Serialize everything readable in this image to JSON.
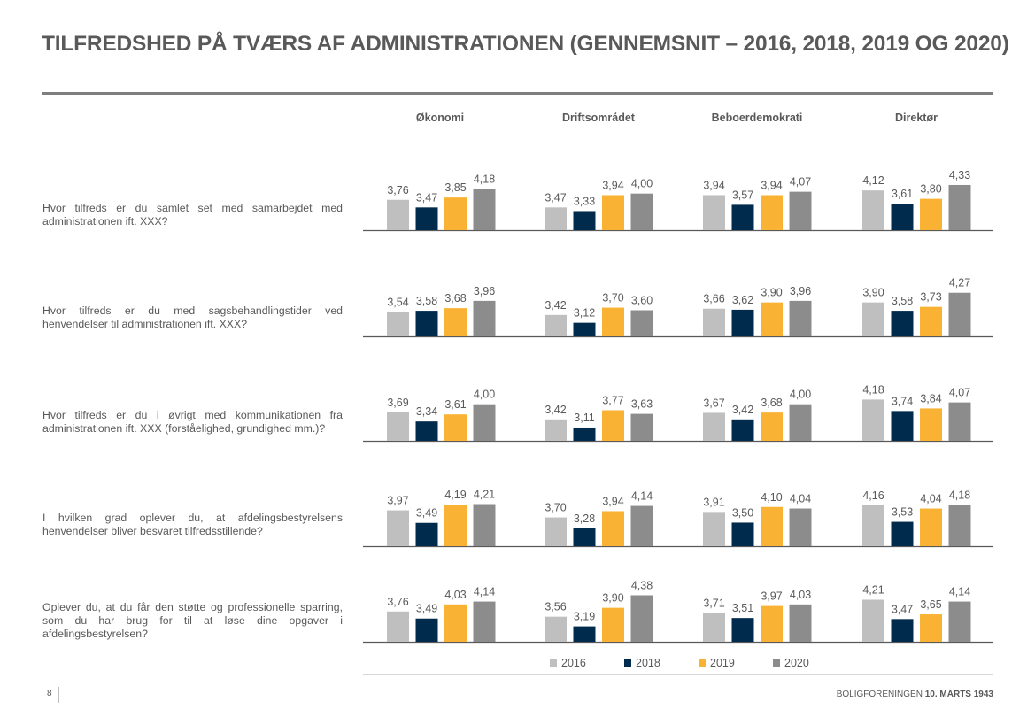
{
  "page": {
    "title": "TILFREDSHED PÅ TVÆRS AF ADMINISTRATIONEN (GENNEMSNIT – 2016, 2018, 2019 OG 2020)",
    "page_number": "8",
    "footer_prefix": "BOLIGFORENINGEN",
    "footer_bold": "10. MARTS 1943"
  },
  "colors": {
    "2016": "#bfbfbf",
    "2018": "#002b4d",
    "2019": "#f9b233",
    "2020": "#8c8c8c"
  },
  "chart_data": {
    "type": "bar",
    "title": "TILFREDSHED PÅ TVÆRS AF ADMINISTRATIONEN (GENNEMSNIT – 2016, 2018, 2019 OG 2020)",
    "columns": [
      "Økonomi",
      "Driftsområdet",
      "Beboerdemokrati",
      "Direktør"
    ],
    "series_names": [
      "2016",
      "2018",
      "2019",
      "2020"
    ],
    "legend_position": "bottom",
    "value_axis_min_approx": 2.6,
    "grid": false,
    "rows": [
      {
        "question": "Hvor tilfreds er du samlet set med samarbejdet med administrationen ift. XXX?",
        "values": [
          [
            3.76,
            3.47,
            3.85,
            4.18
          ],
          [
            3.47,
            3.33,
            3.94,
            4.0
          ],
          [
            3.94,
            3.57,
            3.94,
            4.07
          ],
          [
            4.12,
            3.61,
            3.8,
            4.33
          ]
        ],
        "labels": [
          [
            "3,76",
            "3,47",
            "3,85",
            "4,18"
          ],
          [
            "3,47",
            "3,33",
            "3,94",
            "4,00"
          ],
          [
            "3,94",
            "3,57",
            "3,94",
            "4,07"
          ],
          [
            "4,12",
            "3,61",
            "3,80",
            "4,33"
          ]
        ]
      },
      {
        "question": "Hvor tilfreds er du med sagsbehandlingstider ved henvendelser til administrationen ift. XXX?",
        "values": [
          [
            3.54,
            3.58,
            3.68,
            3.96
          ],
          [
            3.42,
            3.12,
            3.7,
            3.6
          ],
          [
            3.66,
            3.62,
            3.9,
            3.96
          ],
          [
            3.9,
            3.58,
            3.73,
            4.27
          ]
        ],
        "labels": [
          [
            "3,54",
            "3,58",
            "3,68",
            "3,96"
          ],
          [
            "3,42",
            "3,12",
            "3,70",
            "3,60"
          ],
          [
            "3,66",
            "3,62",
            "3,90",
            "3,96"
          ],
          [
            "3,90",
            "3,58",
            "3,73",
            "4,27"
          ]
        ]
      },
      {
        "question": "Hvor tilfreds er du i øvrigt med kommunikationen fra administrationen ift. XXX (forståelighed, grundighed mm.)?",
        "values": [
          [
            3.69,
            3.34,
            3.61,
            4.0
          ],
          [
            3.42,
            3.11,
            3.77,
            3.63
          ],
          [
            3.67,
            3.42,
            3.68,
            4.0
          ],
          [
            4.18,
            3.74,
            3.84,
            4.07
          ]
        ],
        "labels": [
          [
            "3,69",
            "3,34",
            "3,61",
            "4,00"
          ],
          [
            "3,42",
            "3,11",
            "3,77",
            "3,63"
          ],
          [
            "3,67",
            "3,42",
            "3,68",
            "4,00"
          ],
          [
            "4,18",
            "3,74",
            "3,84",
            "4,07"
          ]
        ]
      },
      {
        "question": "I hvilken grad oplever du, at afdelingsbestyrelsens henvendelser bliver besvaret tilfredsstillende?",
        "values": [
          [
            3.97,
            3.49,
            4.19,
            4.21
          ],
          [
            3.7,
            3.28,
            3.94,
            4.14
          ],
          [
            3.91,
            3.5,
            4.1,
            4.04
          ],
          [
            4.16,
            3.53,
            4.04,
            4.18
          ]
        ],
        "labels": [
          [
            "3,97",
            "3,49",
            "4,19",
            "4,21"
          ],
          [
            "3,70",
            "3,28",
            "3,94",
            "4,14"
          ],
          [
            "3,91",
            "3,50",
            "4,10",
            "4,04"
          ],
          [
            "4,16",
            "3,53",
            "4,04",
            "4,18"
          ]
        ]
      },
      {
        "question": "Oplever du, at du får den støtte og professionelle sparring, som du har brug for til at løse dine opgaver i afdelingsbestyrelsen?",
        "values": [
          [
            3.76,
            3.49,
            4.03,
            4.14
          ],
          [
            3.56,
            3.19,
            3.9,
            4.38
          ],
          [
            3.71,
            3.51,
            3.97,
            4.03
          ],
          [
            4.21,
            3.47,
            3.65,
            4.14
          ]
        ],
        "labels": [
          [
            "3,76",
            "3,49",
            "4,03",
            "4,14"
          ],
          [
            "3,56",
            "3,19",
            "3,90",
            "4,38"
          ],
          [
            "3,71",
            "3,51",
            "3,97",
            "4,03"
          ],
          [
            "4,21",
            "3,47",
            "3,65",
            "4,14"
          ]
        ]
      }
    ]
  }
}
